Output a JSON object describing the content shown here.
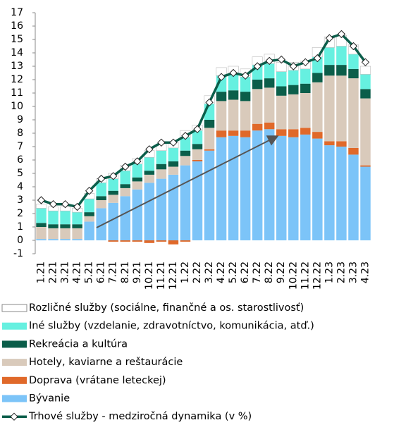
{
  "chart_data": {
    "type": "stacked_bar_line",
    "categories": [
      "1.21",
      "2.21",
      "3.21",
      "4.21",
      "5.21",
      "6.21",
      "7.21",
      "8.21",
      "9.21",
      "10.21",
      "11.21",
      "12.21",
      "1.22",
      "2.22",
      "3.22",
      "4.22",
      "5.22",
      "6.22",
      "7.22",
      "8.22",
      "9.22",
      "10.22",
      "11.22",
      "12.22",
      "1.23",
      "2.23",
      "3.23",
      "4.23"
    ],
    "series": [
      {
        "name": "Bývanie",
        "color": "#7cc4f8",
        "values": [
          0.1,
          0.1,
          0.1,
          0.1,
          1.4,
          2.4,
          2.8,
          3.3,
          3.8,
          4.3,
          4.6,
          4.9,
          5.6,
          5.9,
          6.7,
          7.7,
          7.8,
          7.7,
          8.2,
          8.3,
          7.8,
          7.7,
          7.9,
          7.6,
          7.1,
          7.0,
          6.4,
          5.5
        ]
      },
      {
        "name": "Doprava (vrátane leteckej)",
        "color": "#e0692a",
        "values": [
          0,
          0,
          0,
          0,
          0,
          0,
          -0.1,
          -0.1,
          -0.1,
          -0.2,
          -0.1,
          -0.3,
          -0.1,
          0.1,
          0.1,
          0.5,
          0.4,
          0.5,
          0.5,
          0.5,
          0.5,
          0.6,
          0.5,
          0.5,
          0.3,
          0.4,
          0.5,
          0.1
        ]
      },
      {
        "name": "Hotely, kaviarne a reštaurácie",
        "color": "#d9cabb",
        "values": [
          0.9,
          0.8,
          0.8,
          0.8,
          0.4,
          0.6,
          0.6,
          0.6,
          0.6,
          0.6,
          0.7,
          0.6,
          0.7,
          0.8,
          1.6,
          2.2,
          2.3,
          2.2,
          2.6,
          2.6,
          2.5,
          2.6,
          2.6,
          3.7,
          4.9,
          4.9,
          5.2,
          5.0
        ]
      },
      {
        "name": "Rekreácia a kultúra",
        "color": "#0b5e4a",
        "values": [
          0.3,
          0.3,
          0.3,
          0.3,
          0.3,
          0.3,
          0.3,
          0.3,
          0.3,
          0.3,
          0.4,
          0.4,
          0.4,
          0.4,
          0.6,
          0.7,
          0.7,
          0.7,
          0.7,
          0.7,
          0.7,
          0.7,
          0.7,
          0.7,
          0.8,
          0.8,
          0.7,
          0.7
        ]
      },
      {
        "name": "Iné služby (vzdelanie, zdravotníctvo, komunikácia, atď.)",
        "color": "#66f0e0",
        "values": [
          1.1,
          1.0,
          1.0,
          0.9,
          1.0,
          1.0,
          0.9,
          1.0,
          1.0,
          1.0,
          1.0,
          1.0,
          1.0,
          1.0,
          1.2,
          1.2,
          1.2,
          1.1,
          1.1,
          1.1,
          1.1,
          1.1,
          1.1,
          1.2,
          1.3,
          1.4,
          1.1,
          1.1
        ]
      },
      {
        "name": "Rozličné služby (sociálne, finančné a os. starostlivosť)",
        "color": "#ffffff",
        "values": [
          0.3,
          0.3,
          0.3,
          0.3,
          0.4,
          0.3,
          0.4,
          0.4,
          0.4,
          0.5,
          0.5,
          0.4,
          0.5,
          0.4,
          0.6,
          0.6,
          0.6,
          0.6,
          0.6,
          0.7,
          0.7,
          0.6,
          0.6,
          0.7,
          0.8,
          0.8,
          0.7,
          0.6
        ]
      },
      {
        "name": "Trhové služby - medziročná dynamika (v %)",
        "color": "#0b5e4a",
        "type": "line",
        "values": [
          3.0,
          2.7,
          2.7,
          2.5,
          3.7,
          4.6,
          4.8,
          5.5,
          5.9,
          6.8,
          7.3,
          7.3,
          7.8,
          8.3,
          10.3,
          12.2,
          12.5,
          12.3,
          13.0,
          13.4,
          13.5,
          13.0,
          13.3,
          13.6,
          15.1,
          15.4,
          14.5,
          13.3
        ]
      }
    ],
    "ylim": [
      -1,
      17
    ],
    "yticks": [
      -1,
      0,
      1,
      2,
      3,
      4,
      5,
      6,
      7,
      8,
      9,
      10,
      11,
      12,
      13,
      14,
      15,
      16,
      17
    ],
    "grid": false
  }
}
